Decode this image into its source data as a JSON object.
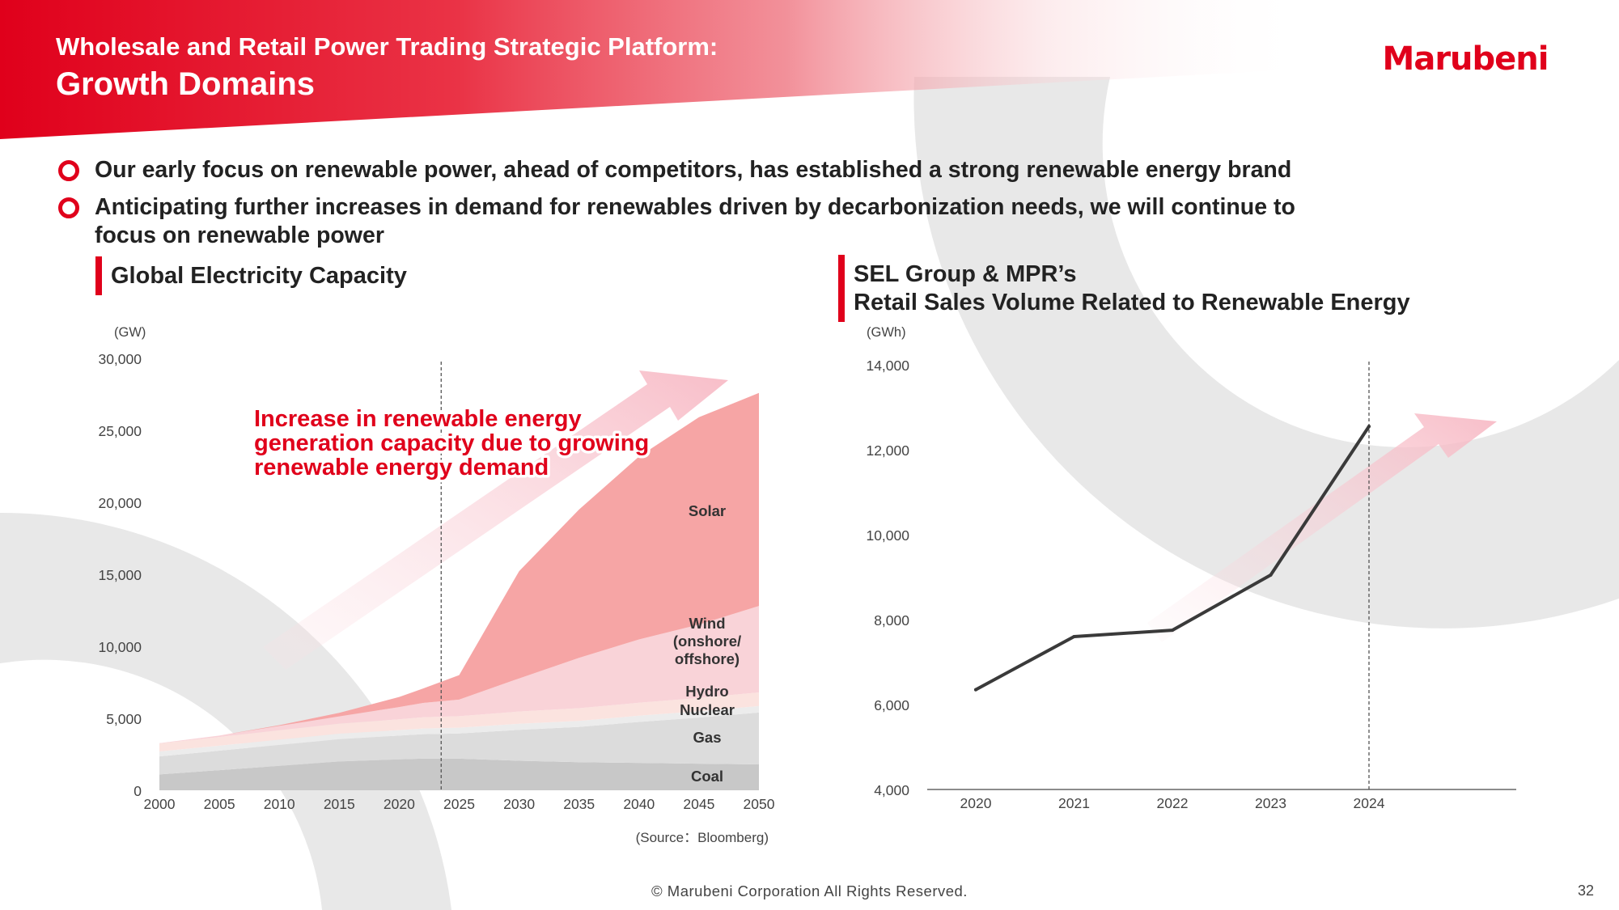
{
  "header": {
    "title_line1": "Wholesale and Retail Power Trading Strategic Platform:",
    "title_line2": "Growth Domains",
    "logo_text": "Marubeni",
    "accent_color": "#e0001b"
  },
  "bullets": [
    "Our early focus on renewable power, ahead of competitors, has established a strong renewable energy brand",
    "Anticipating further increases in demand for renewables driven by decarbonization needs, we will continue to",
    "focus on renewable power"
  ],
  "left_section": {
    "title": "Global Electricity Capacity",
    "source": "(Source：Bloomberg)"
  },
  "right_section": {
    "title_line1": "SEL Group & MPR’s",
    "title_line2": "Retail Sales Volume Related to Renewable Energy"
  },
  "footer": {
    "copyright": "© Marubeni Corporation All Rights Reserved.",
    "page_number": "32"
  },
  "chart_data": [
    {
      "type": "area",
      "stacked": true,
      "ylabel": "(GW)",
      "ylim": [
        0,
        30000
      ],
      "yticks": [
        0,
        5000,
        10000,
        15000,
        20000,
        25000,
        30000
      ],
      "ytick_labels": [
        "0",
        "5,000",
        "10,000",
        "15,000",
        "20,000",
        "25,000",
        "30,000"
      ],
      "xlim": [
        2000,
        2050
      ],
      "xticks": [
        2000,
        2005,
        2010,
        2015,
        2020,
        2025,
        2030,
        2035,
        2040,
        2045,
        2050
      ],
      "x": [
        2000,
        2005,
        2010,
        2015,
        2020,
        2022,
        2025,
        2030,
        2035,
        2040,
        2045,
        2050
      ],
      "forecast_divider_x": 2023.5,
      "annotation": [
        "Increase in renewable energy",
        "generation capacity due to growing",
        "renewable energy demand"
      ],
      "series": [
        {
          "name": "Coal",
          "color": "#c8c8c8",
          "values": [
            1100,
            1400,
            1700,
            2000,
            2150,
            2200,
            2200,
            2050,
            1950,
            1900,
            1850,
            1800
          ]
        },
        {
          "name": "Gas",
          "color": "#dcdcdc",
          "values": [
            1250,
            1350,
            1450,
            1550,
            1650,
            1700,
            1750,
            2150,
            2450,
            2850,
            3200,
            3600
          ]
        },
        {
          "name": "Nuclear",
          "color": "#ececec",
          "values": [
            350,
            350,
            370,
            380,
            380,
            390,
            400,
            420,
            420,
            430,
            440,
            450
          ]
        },
        {
          "name": "Hydro",
          "color": "#fbe3df",
          "values": [
            550,
            600,
            650,
            700,
            750,
            780,
            800,
            850,
            880,
            900,
            920,
            950
          ]
        },
        {
          "name": "Wind\n(onshore/\noffshore)",
          "color": "#f9d3d8",
          "values": [
            20,
            100,
            300,
            500,
            850,
            1000,
            1150,
            2300,
            3500,
            4400,
            5100,
            6000
          ]
        },
        {
          "name": "Solar",
          "color": "#f6a5a5",
          "values": [
            0,
            0,
            50,
            250,
            700,
            1000,
            1700,
            7450,
            10300,
            12700,
            14400,
            14800
          ]
        }
      ]
    },
    {
      "type": "line",
      "ylabel": "(GWh)",
      "ylim": [
        4000,
        14000
      ],
      "yticks": [
        4000,
        6000,
        8000,
        10000,
        12000,
        14000
      ],
      "ytick_labels": [
        "4,000",
        "6,000",
        "8,000",
        "10,000",
        "12,000",
        "14,000"
      ],
      "categories": [
        "2020",
        "2021",
        "2022",
        "2023",
        "2024"
      ],
      "values": [
        6350,
        7600,
        7750,
        9050,
        12550
      ],
      "line_color": "#3a3a3a"
    }
  ]
}
